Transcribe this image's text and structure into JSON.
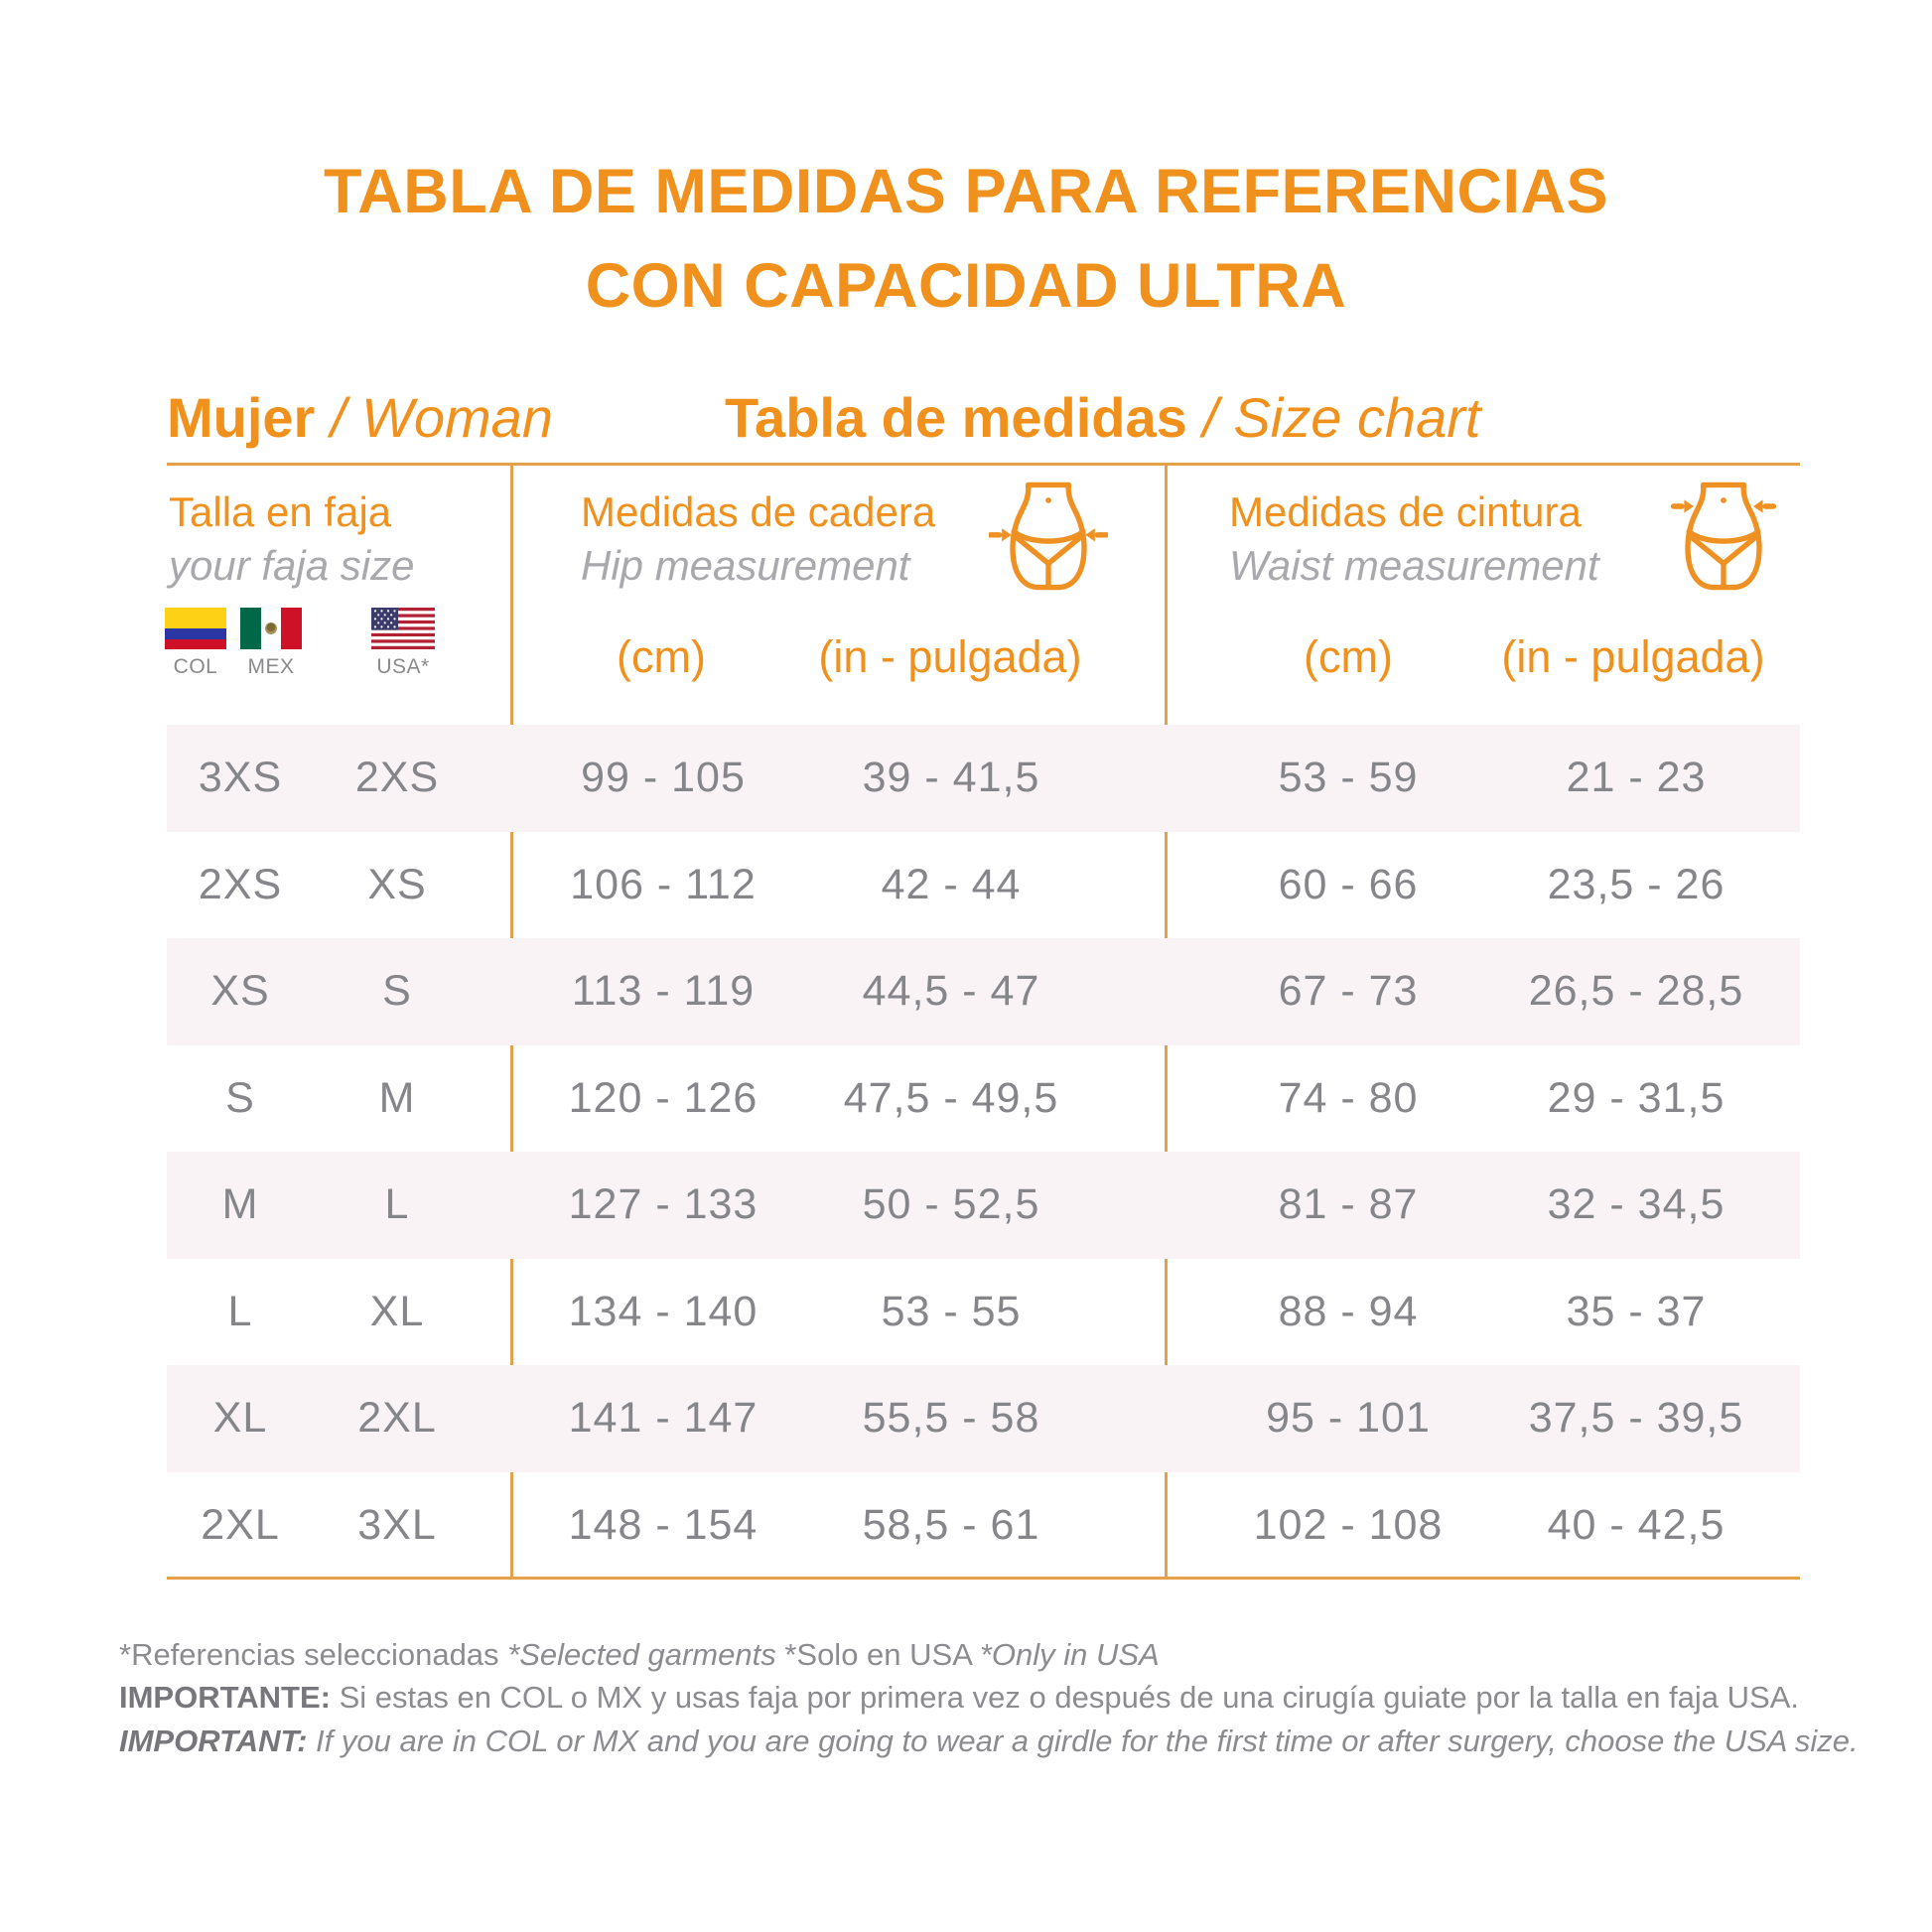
{
  "title": {
    "line1": "TABLA DE MEDIDAS PARA REFERENCIAS",
    "line2": "CON CAPACIDAD ULTRA"
  },
  "section_titles": {
    "left_primary": "Mujer",
    "left_secondary": " / Woman",
    "right_primary": "Tabla de medidas",
    "right_secondary": " / Size chart"
  },
  "columns": {
    "size": {
      "title_es": "Talla en faja",
      "title_en": "your faja size",
      "flag_labels": {
        "col": "COL",
        "mex": "MEX",
        "usa": "USA*"
      }
    },
    "hip": {
      "title_es": "Medidas de cadera",
      "title_en": "Hip measurement",
      "unit_cm": "(cm)",
      "unit_in": "(in - pulgada)"
    },
    "waist": {
      "title_es": "Medidas de cintura",
      "title_en": "Waist measurement",
      "unit_cm": "(cm)",
      "unit_in": "(in - pulgada)"
    }
  },
  "chart_data": {
    "type": "table",
    "columns": [
      "Talla COL/MEX",
      "Talla USA",
      "Cadera cm",
      "Cadera in - pulgada",
      "Cintura cm",
      "Cintura in - pulgada"
    ],
    "rows": [
      [
        "3XS",
        "2XS",
        "99 - 105",
        "39 - 41,5",
        "53 - 59",
        "21 - 23"
      ],
      [
        "2XS",
        "XS",
        "106 - 112",
        "42 - 44",
        "60 - 66",
        "23,5 - 26"
      ],
      [
        "XS",
        "S",
        "113 - 119",
        "44,5 - 47",
        "67 - 73",
        "26,5 - 28,5"
      ],
      [
        "S",
        "M",
        "120 - 126",
        "47,5 - 49,5",
        "74 - 80",
        "29 - 31,5"
      ],
      [
        "M",
        "L",
        "127 - 133",
        "50 - 52,5",
        "81 - 87",
        "32 - 34,5"
      ],
      [
        "L",
        "XL",
        "134 - 140",
        "53 - 55",
        "88 - 94",
        "35 - 37"
      ],
      [
        "XL",
        "2XL",
        "141 - 147",
        "55,5 - 58",
        "95 - 101",
        "37,5 - 39,5"
      ],
      [
        "2XL",
        "3XL",
        "148 - 154",
        "58,5 - 61",
        "102 - 108",
        "40 - 42,5"
      ]
    ]
  },
  "footnotes": [
    {
      "segments": [
        {
          "text": "*Referencias seleccionadas ",
          "style": "regular"
        },
        {
          "text": "*Selected garments ",
          "style": "italic"
        },
        {
          "text": "*Solo en USA ",
          "style": "regular"
        },
        {
          "text": "*Only in USA",
          "style": "italic"
        }
      ]
    },
    {
      "segments": [
        {
          "text": "IMPORTANTE: ",
          "style": "bold"
        },
        {
          "text": "Si estas en COL o MX y usas faja por primera vez o después de una cirugía guiate por la talla en faja USA.",
          "style": "regular"
        }
      ]
    },
    {
      "segments": [
        {
          "text": "IMPORTANT: ",
          "style": "bold-italic"
        },
        {
          "text": "If you are in COL or MX and you are going to wear a girdle for the first time or after surgery, choose the USA size.",
          "style": "italic"
        }
      ]
    }
  ],
  "colors": {
    "accent_orange": "#F0911E",
    "line_gold": "#E4A14A",
    "row_alt_pink": "#F9F3F6",
    "data_gray": "#85858A",
    "subtext_gray": "#A9A9AD",
    "footer_gray": "#8C8C90"
  }
}
